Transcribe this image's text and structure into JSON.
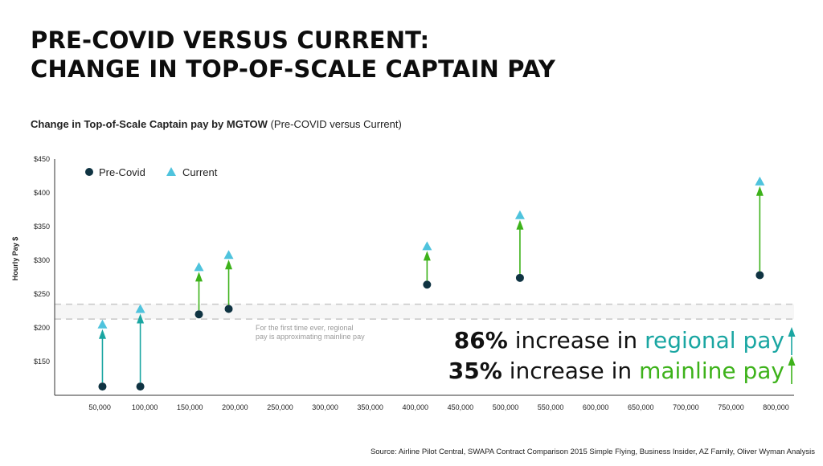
{
  "title": {
    "line1": "PRE-COVID VERSUS CURRENT:",
    "line2": "CHANGE IN TOP-OF-SCALE CAPTAIN PAY"
  },
  "subtitle": {
    "bold": "Change in Top-of-Scale Captain pay by MGTOW",
    "normal": "(Pre-COVID versus Current)"
  },
  "annotation": {
    "line1": "For the first time ever, regional",
    "line2": "pay is approximating mainline pay"
  },
  "callouts": {
    "regional": {
      "pct": "86%",
      "text": "increase in",
      "highlight": "regional pay"
    },
    "mainline": {
      "pct": "35%",
      "text": "increase in",
      "highlight": "mainline pay"
    }
  },
  "source": "Source: Airline Pilot Central, SWAPA Contract Comparison 2015 Simple Flying, Business Insider, AZ Family, Oliver Wyman Analysis",
  "colors": {
    "pre": "#0f3342",
    "current": "#4fc3dd",
    "regional_arrow": "#1aa6a2",
    "mainline_arrow": "#3db21a",
    "band": "#c8c8c8"
  },
  "chart_data": {
    "type": "scatter",
    "ylabel": "Hourly Pay $",
    "xlabel": "",
    "ylim": [
      100,
      450
    ],
    "xlim": [
      0,
      820000
    ],
    "y_ticks": [
      150,
      200,
      250,
      300,
      350,
      400,
      450
    ],
    "y_tick_labels": [
      "$150",
      "$200",
      "$250",
      "$300",
      "$350",
      "$400",
      "$450"
    ],
    "x_ticks": [
      50000,
      100000,
      150000,
      200000,
      250000,
      300000,
      350000,
      400000,
      450000,
      500000,
      550000,
      600000,
      650000,
      700000,
      750000,
      800000
    ],
    "x_tick_labels": [
      "50,000",
      "100,000",
      "150,000",
      "200,000",
      "250,000",
      "300,000",
      "350,000",
      "400,000",
      "450,000",
      "500,000",
      "550,000",
      "600,000",
      "650,000",
      "700,000",
      "750,000",
      "800,000"
    ],
    "legend": [
      "Pre-Covid",
      "Current"
    ],
    "legend_position": "top-left",
    "band": [
      213,
      235
    ],
    "series": [
      {
        "name": "Pre-Covid",
        "marker": "circle",
        "x": [
          53000,
          95000,
          160000,
          193000,
          413000,
          516000,
          782000
        ],
        "values": [
          113,
          113,
          220,
          228,
          264,
          274,
          278
        ]
      },
      {
        "name": "Current",
        "marker": "triangle",
        "x": [
          53000,
          95000,
          160000,
          193000,
          413000,
          516000,
          782000
        ],
        "values": [
          205,
          228,
          290,
          308,
          321,
          367,
          417
        ]
      }
    ],
    "arrow_groups": [
      "regional",
      "regional",
      "mainline",
      "mainline",
      "mainline",
      "mainline",
      "mainline"
    ],
    "side_arrows": {
      "regional": [
        170,
        205
      ],
      "mainline": [
        120,
        160
      ]
    }
  }
}
